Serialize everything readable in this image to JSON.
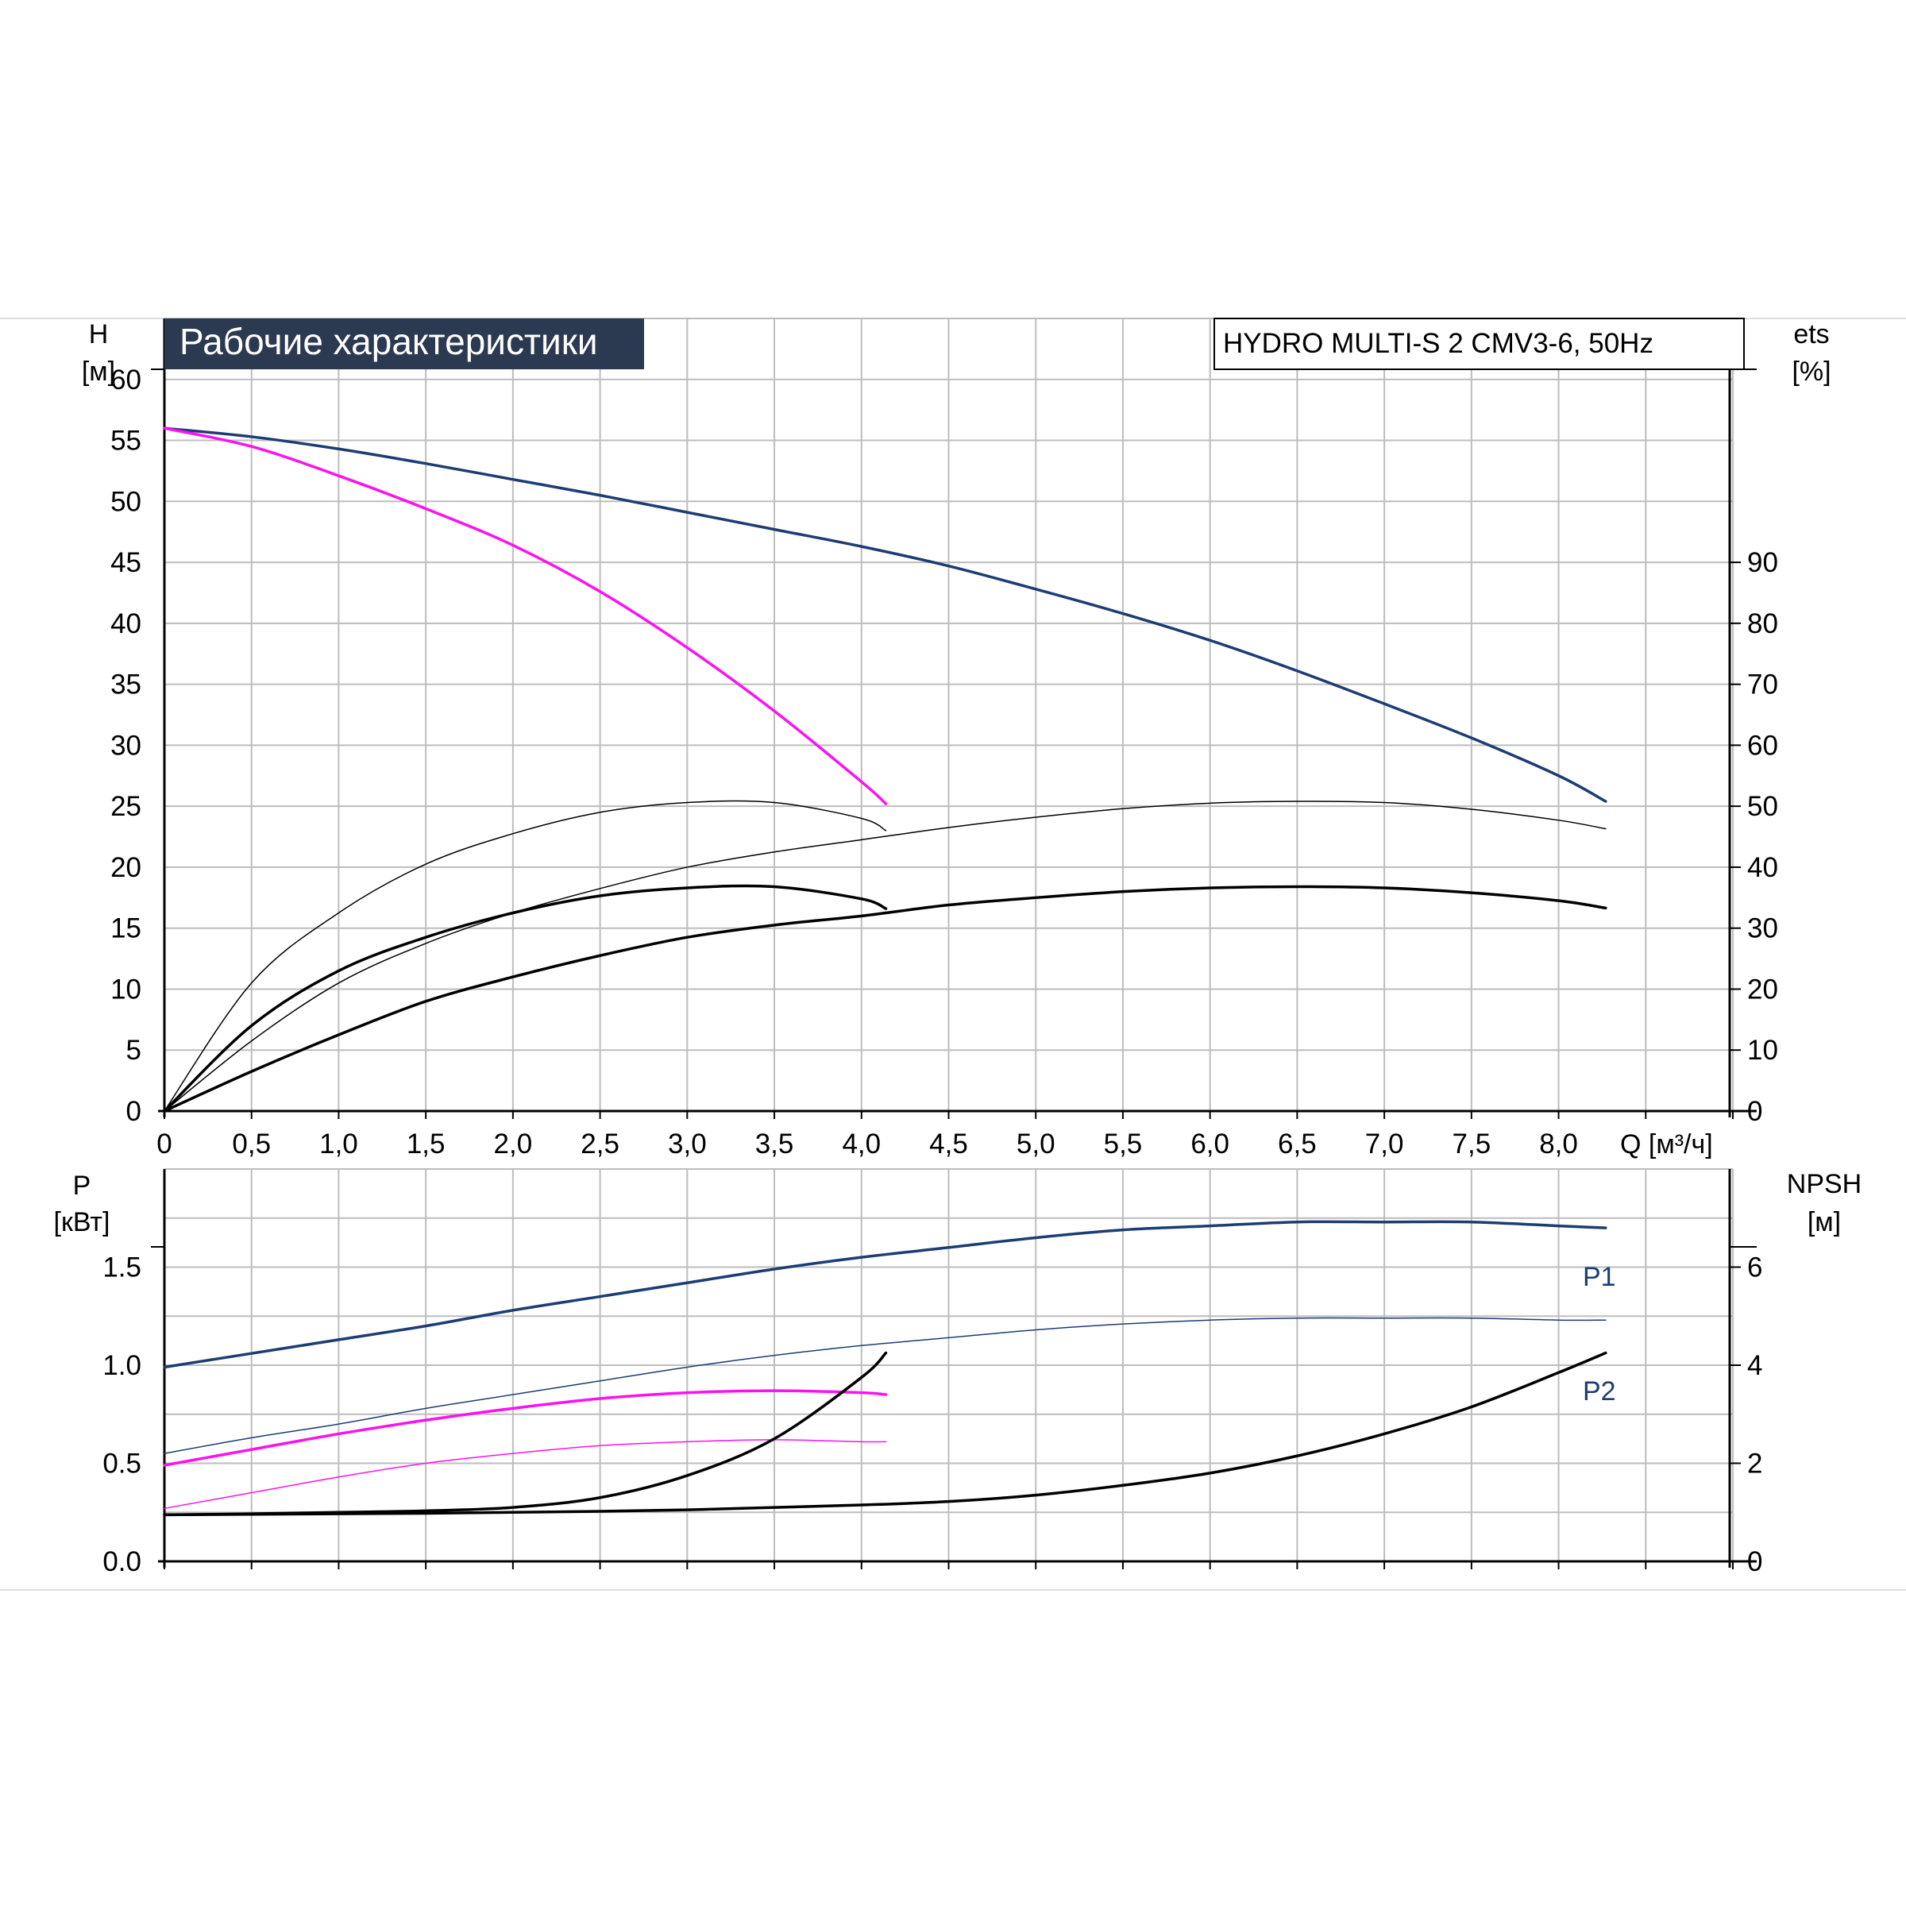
{
  "header": {
    "title": "Рабочие характеристики",
    "model": "HYDRO MULTI-S 2 CMV3-6, 50Hz"
  },
  "colors": {
    "header_bg": "#2b3a50",
    "grid": "#bdbdbd",
    "axis": "#000000",
    "blue": "#1c3d73",
    "magenta": "#ff10f0",
    "black": "#000000"
  },
  "chart_data": [
    {
      "type": "line",
      "name": "upper",
      "axis_labels": {
        "left": [
          "H",
          "[м]"
        ],
        "right": [
          "ets",
          "[%]"
        ],
        "x_unit": "Q [м³/ч]"
      },
      "x_ticks": [
        "0",
        "0,5",
        "1,0",
        "1,5",
        "2,0",
        "2,5",
        "3,0",
        "3,5",
        "4,0",
        "4,5",
        "5,0",
        "5,5",
        "6,0",
        "6,5",
        "7,0",
        "7,5",
        "8,0"
      ],
      "y_ticks": [
        "0",
        "5",
        "10",
        "15",
        "20",
        "25",
        "30",
        "35",
        "40",
        "45",
        "50",
        "55",
        "60"
      ],
      "y2_ticks": [
        "0",
        "10",
        "20",
        "30",
        "40",
        "50",
        "60",
        "70",
        "80",
        "90"
      ],
      "xlim": [
        0,
        9
      ],
      "ylim": [
        0,
        65
      ],
      "y2lim": [
        0,
        130
      ],
      "grid": true,
      "series": [
        {
          "color": "blue",
          "width": 3.5,
          "axis": "left",
          "x": [
            0,
            0.5,
            1.0,
            1.5,
            2.0,
            2.5,
            3.0,
            3.5,
            4.0,
            4.5,
            5.0,
            5.5,
            6.0,
            6.5,
            7.0,
            7.5,
            8.0,
            8.27
          ],
          "y": [
            56.0,
            55.3,
            54.3,
            53.1,
            51.8,
            50.5,
            49.1,
            47.7,
            46.3,
            44.7,
            42.8,
            40.8,
            38.6,
            36.1,
            33.4,
            30.6,
            27.5,
            25.4
          ]
        },
        {
          "color": "magenta",
          "width": 3.5,
          "axis": "left",
          "x": [
            0,
            0.5,
            1.0,
            1.5,
            2.0,
            2.5,
            3.0,
            3.5,
            4.0,
            4.14
          ],
          "y": [
            56.0,
            54.5,
            52.1,
            49.4,
            46.4,
            42.6,
            38.0,
            32.8,
            27.0,
            25.2
          ]
        },
        {
          "color": "black",
          "width": 1.5,
          "axis": "right",
          "x": [
            0,
            0.5,
            1.0,
            1.5,
            2.0,
            2.5,
            3.0,
            3.5,
            4.0,
            4.14
          ],
          "y": [
            0,
            21.0,
            32.5,
            40.5,
            45.5,
            49.0,
            50.6,
            50.6,
            48.0,
            46.0
          ]
        },
        {
          "color": "black",
          "width": 1.5,
          "axis": "right",
          "x": [
            0,
            0.5,
            1.0,
            1.5,
            2.0,
            2.5,
            3.0,
            3.5,
            4.0,
            4.5,
            5.0,
            5.5,
            6.0,
            6.5,
            7.0,
            7.5,
            8.0,
            8.27
          ],
          "y": [
            0,
            11.5,
            21.0,
            27.5,
            32.5,
            36.5,
            40.0,
            42.5,
            44.5,
            46.5,
            48.2,
            49.6,
            50.5,
            50.8,
            50.6,
            49.5,
            47.7,
            46.3
          ]
        },
        {
          "color": "black",
          "width": 3.5,
          "axis": "right",
          "x": [
            0,
            0.5,
            1.0,
            1.5,
            2.0,
            2.5,
            3.0,
            3.5,
            4.0,
            4.14
          ],
          "y": [
            0,
            14.0,
            23.0,
            28.5,
            32.5,
            35.3,
            36.6,
            36.8,
            34.8,
            33.2
          ]
        },
        {
          "color": "black",
          "width": 3.5,
          "axis": "right",
          "x": [
            0,
            0.5,
            1.0,
            1.5,
            2.0,
            2.5,
            3.0,
            3.5,
            4.0,
            4.5,
            5.0,
            5.5,
            6.0,
            6.5,
            7.0,
            7.5,
            8.0,
            8.27
          ],
          "y": [
            0,
            6.5,
            12.5,
            18.0,
            22.0,
            25.5,
            28.5,
            30.5,
            32.0,
            33.8,
            35.0,
            36.0,
            36.6,
            36.8,
            36.6,
            35.8,
            34.5,
            33.3
          ]
        }
      ]
    },
    {
      "type": "line",
      "name": "lower",
      "axis_labels": {
        "left": [
          "P",
          "[кВт]"
        ],
        "right": [
          "NPSH",
          "[м]"
        ]
      },
      "y_ticks": [
        "0.0",
        "0.5",
        "1.0",
        "1.5"
      ],
      "y2_ticks": [
        "0",
        "2",
        "4",
        "6"
      ],
      "xlim": [
        0,
        9
      ],
      "ylim": [
        0,
        2.0
      ],
      "y2lim": [
        0,
        8
      ],
      "grid": true,
      "series": [
        {
          "name": "P1",
          "color": "blue",
          "width": 3.5,
          "axis": "left",
          "x": [
            0,
            0.5,
            1.0,
            1.5,
            2.0,
            2.5,
            3.0,
            3.5,
            4.0,
            4.5,
            5.0,
            5.5,
            6.0,
            6.5,
            7.0,
            7.5,
            8.0,
            8.27
          ],
          "y": [
            0.99,
            1.06,
            1.13,
            1.2,
            1.28,
            1.35,
            1.42,
            1.49,
            1.55,
            1.6,
            1.65,
            1.69,
            1.71,
            1.73,
            1.73,
            1.73,
            1.71,
            1.7
          ]
        },
        {
          "name": "P2",
          "color": "blue",
          "width": 1.5,
          "axis": "left",
          "x": [
            0,
            0.5,
            1.0,
            1.5,
            2.0,
            2.5,
            3.0,
            3.5,
            4.0,
            4.5,
            5.0,
            5.5,
            6.0,
            6.5,
            7.0,
            7.5,
            8.0,
            8.27
          ],
          "y": [
            0.55,
            0.63,
            0.7,
            0.78,
            0.85,
            0.92,
            0.99,
            1.05,
            1.1,
            1.14,
            1.18,
            1.21,
            1.23,
            1.24,
            1.24,
            1.24,
            1.23,
            1.23
          ]
        },
        {
          "color": "magenta",
          "width": 3.5,
          "axis": "left",
          "x": [
            0,
            0.5,
            1.0,
            1.5,
            2.0,
            2.5,
            3.0,
            3.5,
            4.0,
            4.14
          ],
          "y": [
            0.49,
            0.57,
            0.65,
            0.72,
            0.78,
            0.83,
            0.86,
            0.87,
            0.86,
            0.85
          ]
        },
        {
          "color": "magenta",
          "width": 1.5,
          "axis": "left",
          "x": [
            0,
            0.5,
            1.0,
            1.5,
            2.0,
            2.5,
            3.0,
            3.5,
            4.0,
            4.14
          ],
          "y": [
            0.27,
            0.35,
            0.43,
            0.5,
            0.55,
            0.59,
            0.61,
            0.62,
            0.61,
            0.61
          ]
        },
        {
          "color": "black",
          "width": 3.5,
          "axis": "right",
          "x": [
            0,
            0.5,
            1.0,
            1.5,
            2.0,
            2.5,
            3.0,
            3.5,
            4.0,
            4.14
          ],
          "y": [
            0.95,
            0.97,
            1.0,
            1.03,
            1.1,
            1.3,
            1.75,
            2.5,
            3.75,
            4.25
          ]
        },
        {
          "color": "black",
          "width": 3.5,
          "axis": "right",
          "x": [
            0,
            0.5,
            1.0,
            1.5,
            2.0,
            2.5,
            3.0,
            3.5,
            4.0,
            4.5,
            5.0,
            5.5,
            6.0,
            6.5,
            7.0,
            7.5,
            8.0,
            8.27
          ],
          "y": [
            0.95,
            0.96,
            0.97,
            0.98,
            1.0,
            1.02,
            1.05,
            1.1,
            1.15,
            1.22,
            1.35,
            1.55,
            1.8,
            2.15,
            2.6,
            3.15,
            3.85,
            4.25
          ]
        }
      ]
    }
  ]
}
